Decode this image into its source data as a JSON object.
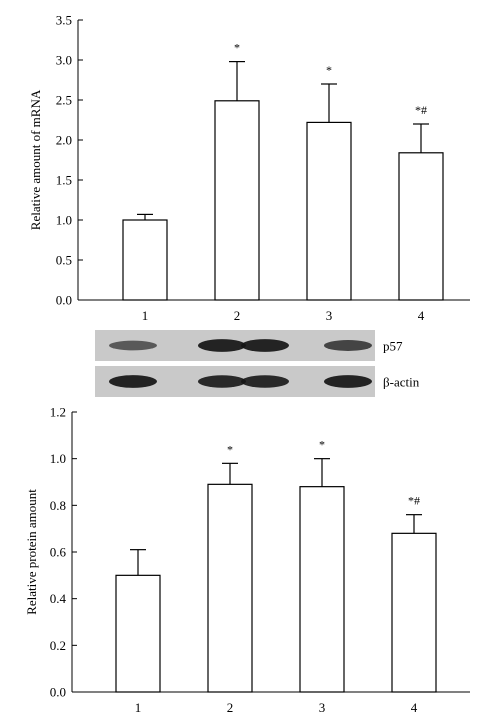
{
  "chart_data": [
    {
      "type": "bar",
      "ylabel": "Relative amount of mRNA",
      "xlabel": "",
      "categories": [
        "1",
        "2",
        "3",
        "4"
      ],
      "values": [
        1.0,
        2.49,
        2.22,
        1.84
      ],
      "errors": [
        0.07,
        0.49,
        0.48,
        0.36
      ],
      "annotations": [
        "",
        "*",
        "*",
        "*#"
      ],
      "ylim": [
        0,
        3.5
      ],
      "yticks": [
        "0.0",
        "0.5",
        "1.0",
        "1.5",
        "2.0",
        "2.5",
        "3.0",
        "3.5"
      ],
      "bar_fill": "#ffffff",
      "grid": false
    },
    {
      "type": "bar",
      "ylabel": "Relative protein amount",
      "xlabel": "",
      "categories": [
        "1",
        "2",
        "3",
        "4"
      ],
      "values": [
        0.5,
        0.89,
        0.88,
        0.68
      ],
      "errors": [
        0.11,
        0.09,
        0.12,
        0.08
      ],
      "annotations": [
        "",
        "*",
        "*",
        "*#"
      ],
      "ylim": [
        0,
        1.2
      ],
      "yticks": [
        "0.0",
        "0.2",
        "0.4",
        "0.6",
        "0.8",
        "1.0",
        "1.2"
      ],
      "bar_fill": "#ffffff",
      "grid": false
    }
  ],
  "blot": {
    "rows": [
      {
        "label": "p57",
        "intensity": [
          0.45,
          0.95,
          0.95,
          0.65
        ]
      },
      {
        "label": "β-actin",
        "intensity": [
          0.95,
          0.9,
          0.9,
          0.95
        ]
      }
    ],
    "background": "#c9c9c9",
    "band_color": "#151515"
  }
}
